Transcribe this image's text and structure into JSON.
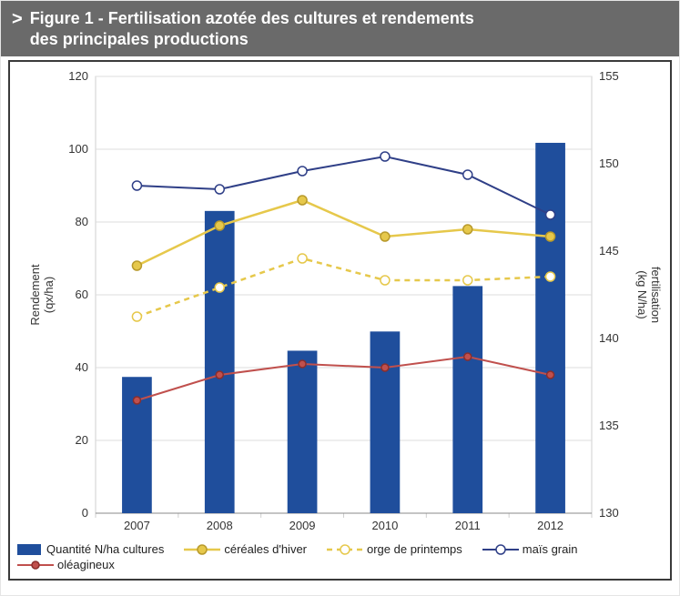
{
  "header": {
    "chevron": ">",
    "title_line1": "Figure 1 - Fertilisation azotée des cultures et rendements",
    "title_line2": "des principales productions"
  },
  "chart": {
    "type": "bar_and_lines_dual_axis",
    "background_color": "#ffffff",
    "plot_border_color": "#cfcfcf",
    "categories": [
      "2007",
      "2008",
      "2009",
      "2010",
      "2011",
      "2012"
    ],
    "y_left": {
      "label": "Rendement\n(qx/ha)",
      "min": 0,
      "max": 120,
      "tick_step": 20,
      "tick_color": "#333333",
      "label_fontsize": 13
    },
    "y_right": {
      "label": "fertilisation\n(kg N/ha)",
      "min": 130,
      "max": 155,
      "tick_step": 5,
      "tick_color": "#333333",
      "label_fontsize": 13
    },
    "grid_color": "#dcdcdc",
    "series": {
      "bars": {
        "name": "Quantité N/ha cultures",
        "axis": "right",
        "values": [
          137.8,
          147.3,
          139.3,
          140.4,
          143.0,
          151.2
        ],
        "color": "#1f4e9c",
        "bar_width": 0.36
      },
      "cereales_hiver": {
        "name": "céréales d'hiver",
        "axis": "left",
        "values": [
          68,
          79,
          86,
          76,
          78,
          76
        ],
        "color": "#e6c84b",
        "stroke_width": 2.5,
        "dash": "none",
        "marker": "circle",
        "marker_fill": "#e6c84b",
        "marker_stroke": "#b89a2b",
        "marker_size": 5
      },
      "orge_printemps": {
        "name": "orge de printemps",
        "axis": "left",
        "values": [
          54,
          62,
          70,
          64,
          64,
          65
        ],
        "color": "#e6c84b",
        "stroke_width": 2.5,
        "dash": "6,5",
        "marker": "circle",
        "marker_fill": "#ffffff",
        "marker_stroke": "#e6c84b",
        "marker_size": 5
      },
      "mais_grain": {
        "name": "maïs grain",
        "axis": "left",
        "values": [
          90,
          89,
          94,
          98,
          93,
          82
        ],
        "color": "#2f3f87",
        "stroke_width": 2,
        "dash": "none",
        "marker": "circle",
        "marker_fill": "#ffffff",
        "marker_stroke": "#2f3f87",
        "marker_size": 5
      },
      "oleagineux": {
        "name": "oléagineux",
        "axis": "left",
        "values": [
          31,
          38,
          41,
          40,
          43,
          38
        ],
        "color": "#c0504d",
        "stroke_width": 2,
        "dash": "none",
        "marker": "circle",
        "marker_fill": "#c0504d",
        "marker_stroke": "#8a2e2c",
        "marker_size": 4
      }
    }
  },
  "legend": {
    "items": [
      {
        "key": "bars",
        "label": "Quantité N/ha cultures"
      },
      {
        "key": "cereales_hiver",
        "label": "céréales d'hiver"
      },
      {
        "key": "orge_printemps",
        "label": "orge de printemps"
      },
      {
        "key": "mais_grain",
        "label": "maïs grain"
      },
      {
        "key": "oleagineux",
        "label": "oléagineux"
      }
    ]
  }
}
